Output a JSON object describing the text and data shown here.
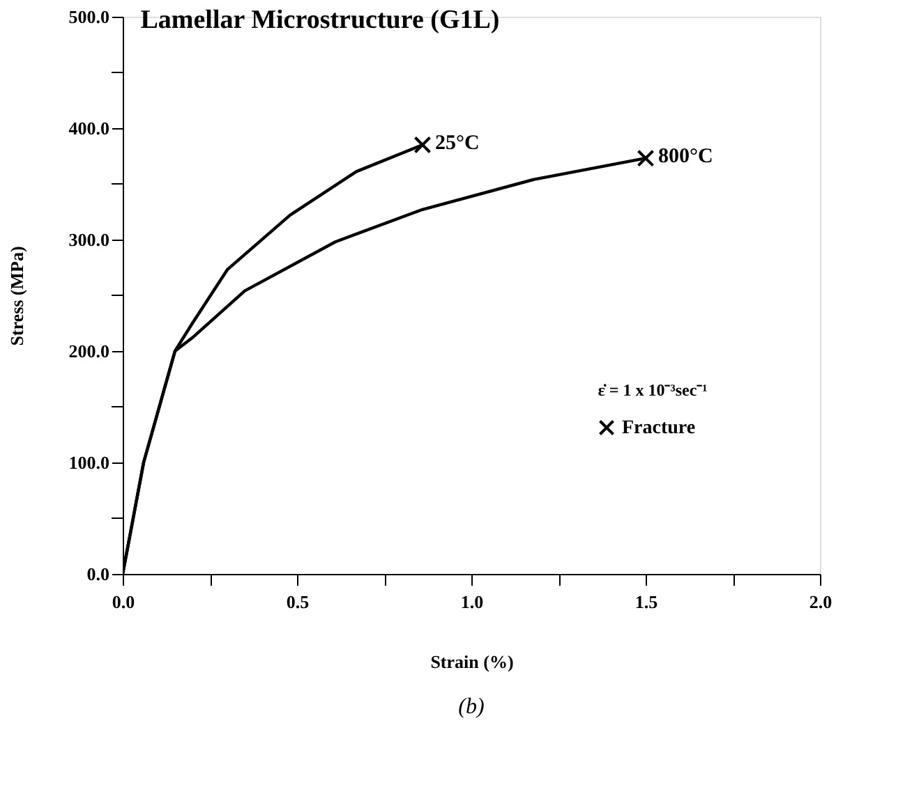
{
  "chart_data": {
    "type": "line",
    "title": "Lamellar Microstructure (G1L)",
    "xlabel": "Strain (%)",
    "ylabel": "Stress (MPa)",
    "xlim": [
      0,
      2
    ],
    "ylim": [
      0,
      500
    ],
    "xticks": [
      {
        "value": 0,
        "label": "0.0"
      },
      {
        "value": 0.25,
        "label": null
      },
      {
        "value": 0.5,
        "label": "0.5"
      },
      {
        "value": 0.75,
        "label": null
      },
      {
        "value": 1,
        "label": "1.0"
      },
      {
        "value": 1.25,
        "label": null
      },
      {
        "value": 1.5,
        "label": "1.5"
      },
      {
        "value": 1.75,
        "label": null
      },
      {
        "value": 2,
        "label": "2.0"
      }
    ],
    "yticks": [
      {
        "value": 0,
        "label": "0.0"
      },
      {
        "value": 50,
        "label": null
      },
      {
        "value": 100,
        "label": "100.0"
      },
      {
        "value": 150,
        "label": null
      },
      {
        "value": 200,
        "label": "200.0"
      },
      {
        "value": 250,
        "label": null
      },
      {
        "value": 300,
        "label": "300.0"
      },
      {
        "value": 350,
        "label": null
      },
      {
        "value": 400,
        "label": "400.0"
      },
      {
        "value": 450,
        "label": null
      },
      {
        "value": 500,
        "label": "500.0"
      }
    ],
    "series": [
      {
        "name": "25°C",
        "type": "line",
        "color": "#000000",
        "x": [
          0,
          0.06,
          0.15,
          0.2,
          0.3,
          0.48,
          0.67,
          0.86
        ],
        "values": [
          0,
          100,
          200,
          225,
          273,
          322,
          361,
          385
        ]
      },
      {
        "name": "800°C",
        "type": "line",
        "color": "#000000",
        "x": [
          0,
          0.06,
          0.15,
          0.2,
          0.35,
          0.61,
          0.86,
          1.18,
          1.5
        ],
        "values": [
          0,
          100,
          200,
          212,
          254,
          298,
          327,
          354,
          373
        ]
      },
      {
        "name": "Fracture",
        "type": "scatter",
        "marker": "cross",
        "color": "#000000",
        "x": [
          0.86,
          1.5
        ],
        "values": [
          385,
          373
        ]
      }
    ],
    "legend": "bottom right",
    "grid": false,
    "line_style": "solid",
    "annotations": [
      "ε̇ = 1 x 10⁻³sec⁻¹",
      "(b)"
    ]
  }
}
